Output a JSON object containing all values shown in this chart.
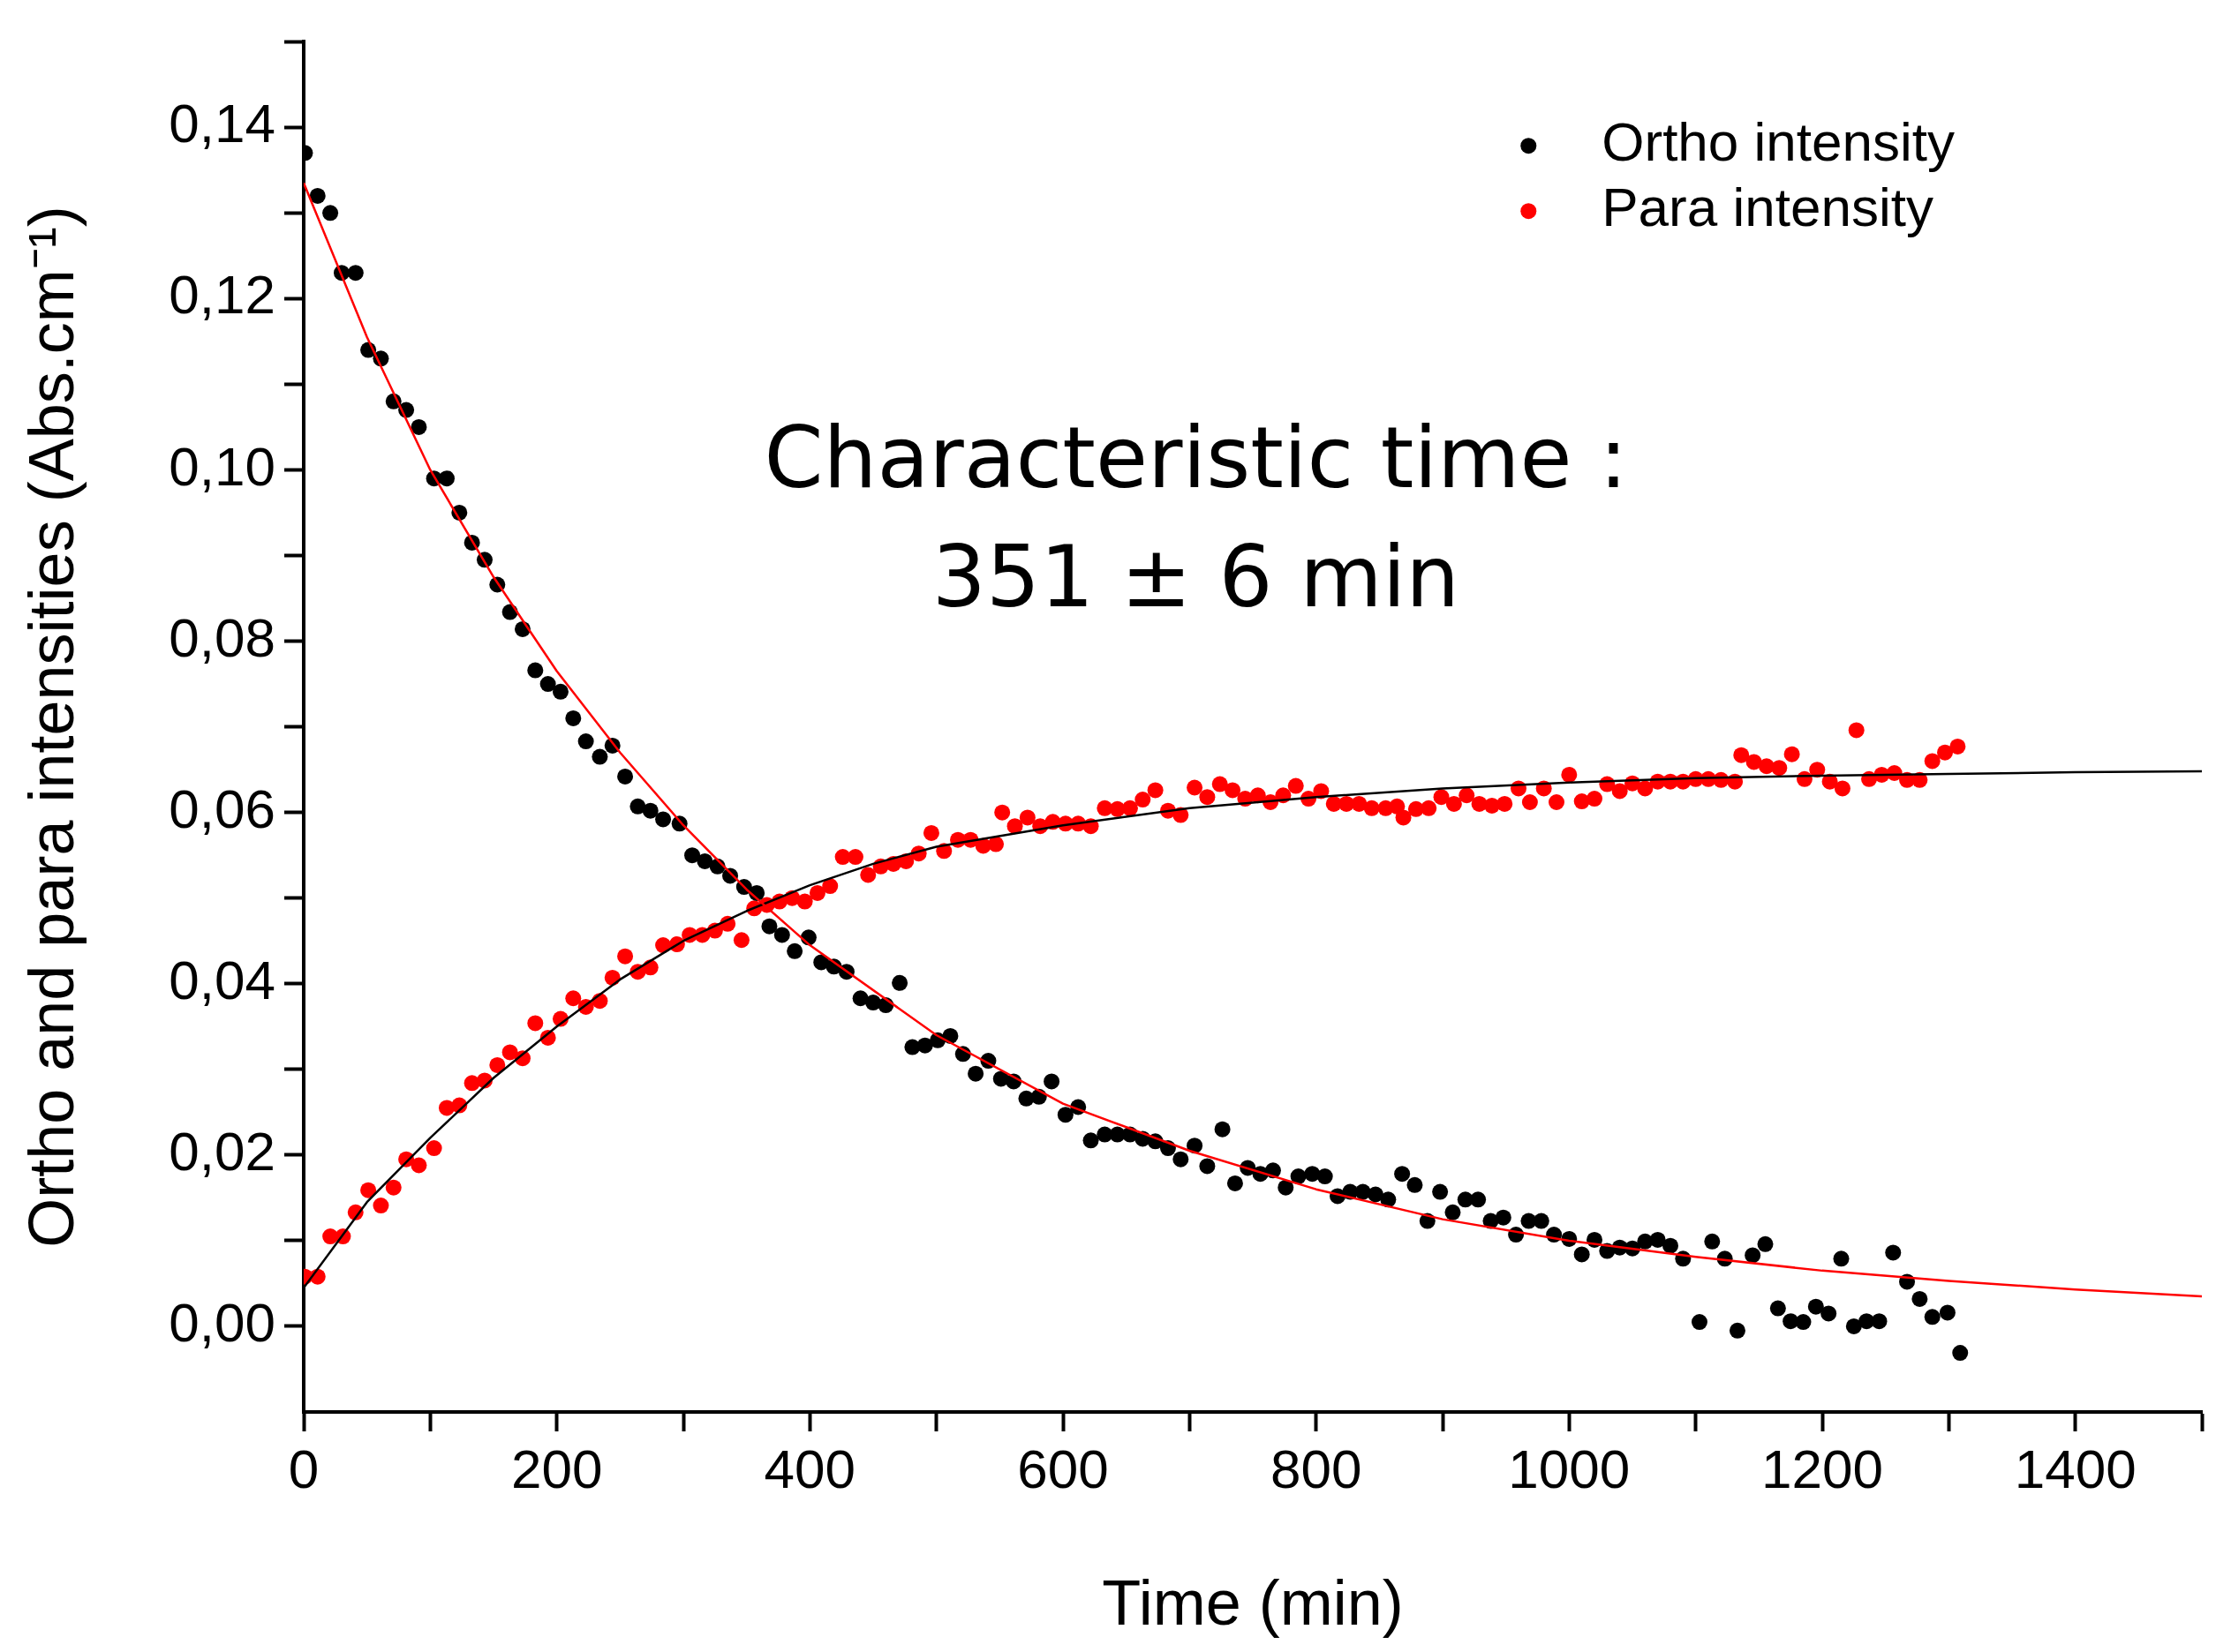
{
  "chart_data": {
    "type": "scatter",
    "xlabel": "Time (min)",
    "ylabel": "Ortho and para intensities (Abs.cm⁻¹)",
    "annotations": [
      "Characteristic time :",
      "351 ± 6 min"
    ],
    "xlim": [
      0,
      1500
    ],
    "xticks": [
      0,
      200,
      400,
      600,
      800,
      1000,
      1200,
      1400
    ],
    "ylim": [
      -0.01,
      0.15
    ],
    "yticks": [
      {
        "value": 0,
        "label": "0,00"
      },
      {
        "value": 0.02,
        "label": "0,02"
      },
      {
        "value": 0.04,
        "label": "0,04"
      },
      {
        "value": 0.06,
        "label": "0,06"
      },
      {
        "value": 0.08,
        "label": "0,08"
      },
      {
        "value": 0.1,
        "label": "0,10"
      },
      {
        "value": 0.12,
        "label": "0,12"
      },
      {
        "value": 0.14,
        "label": "0,14"
      }
    ],
    "legend": "top right",
    "marker": "circle",
    "series": [
      {
        "name": "Ortho intensity",
        "color": "#000000",
        "x": [
          1,
          11,
          21,
          30,
          41,
          51,
          61,
          71,
          81,
          91,
          103,
          113,
          123,
          133,
          143,
          153,
          163,
          173,
          183,
          193,
          203,
          213,
          223,
          234,
          244,
          254,
          264,
          274,
          284,
          297,
          307,
          317,
          327,
          337,
          348,
          358,
          368,
          378,
          388,
          399,
          409,
          419,
          429,
          440,
          450,
          460,
          471,
          481,
          491,
          501,
          511,
          521,
          531,
          541,
          551,
          561,
          571,
          581,
          591,
          602,
          612,
          622,
          633,
          643,
          653,
          663,
          673,
          683,
          693,
          704,
          714,
          726,
          736,
          746,
          756,
          766,
          776,
          786,
          797,
          807,
          817,
          827,
          837,
          847,
          857,
          868,
          878,
          888,
          898,
          908,
          918,
          928,
          938,
          948,
          958,
          968,
          978,
          988,
          1000,
          1010,
          1020,
          1030,
          1040,
          1050,
          1060,
          1070,
          1080,
          1090,
          1103,
          1113,
          1123,
          1133,
          1145,
          1155,
          1165,
          1175,
          1185,
          1195,
          1205,
          1215,
          1225,
          1235,
          1245,
          1256,
          1267,
          1277,
          1287,
          1299,
          1309
        ],
        "values": [
          0.137,
          0.132,
          0.13,
          0.123,
          0.123,
          0.114,
          0.113,
          0.108,
          0.107,
          0.105,
          0.099,
          0.099,
          0.095,
          0.0915,
          0.0895,
          0.0866,
          0.0834,
          0.0814,
          0.0766,
          0.075,
          0.0741,
          0.071,
          0.0683,
          0.0665,
          0.0678,
          0.0642,
          0.0607,
          0.0602,
          0.0592,
          0.0587,
          0.055,
          0.0543,
          0.0537,
          0.0526,
          0.0513,
          0.0506,
          0.0467,
          0.0457,
          0.0438,
          0.0454,
          0.0425,
          0.042,
          0.0414,
          0.0383,
          0.0378,
          0.0375,
          0.0401,
          0.0326,
          0.0328,
          0.0334,
          0.0339,
          0.0318,
          0.0295,
          0.031,
          0.0289,
          0.0286,
          0.0266,
          0.0268,
          0.0286,
          0.0247,
          0.0256,
          0.0217,
          0.0224,
          0.0224,
          0.0224,
          0.0219,
          0.0216,
          0.0208,
          0.0195,
          0.0211,
          0.0187,
          0.023,
          0.0167,
          0.0185,
          0.0178,
          0.0182,
          0.0162,
          0.0175,
          0.0178,
          0.0175,
          0.0152,
          0.0157,
          0.0157,
          0.0154,
          0.0148,
          0.0178,
          0.0165,
          0.0123,
          0.0157,
          0.0133,
          0.0148,
          0.0148,
          0.0123,
          0.0127,
          0.0107,
          0.0123,
          0.0123,
          0.0107,
          0.0102,
          0.0084,
          0.0101,
          0.0088,
          0.0092,
          0.0091,
          0.0099,
          0.0101,
          0.0094,
          0.0079,
          0.0005,
          0.0099,
          0.0079,
          -0.0005,
          0.0083,
          0.0096,
          0.0021,
          0.0006,
          0.0005,
          0.0023,
          0.0015,
          0.0079,
          0.0,
          0.0006,
          0.0006,
          0.0086,
          0.0052,
          0.0032,
          0.0011,
          0.0016,
          -0.0031
        ]
      },
      {
        "name": "Para intensity",
        "color": "#ff0000",
        "x": [
          1,
          11,
          21,
          31,
          41,
          51,
          61,
          71,
          81,
          91,
          103,
          113,
          123,
          133,
          143,
          153,
          163,
          173,
          183,
          193,
          203,
          213,
          223,
          234,
          244,
          254,
          264,
          274,
          284,
          295,
          305,
          315,
          325,
          335,
          346,
          356,
          366,
          376,
          386,
          396,
          406,
          416,
          426,
          436,
          446,
          456,
          466,
          476,
          486,
          496,
          506,
          517,
          527,
          537,
          547,
          552,
          562,
          572,
          582,
          592,
          602,
          612,
          622,
          633,
          643,
          653,
          663,
          673,
          683,
          693,
          704,
          714,
          724,
          734,
          744,
          754,
          764,
          774,
          784,
          794,
          804,
          814,
          824,
          834,
          844,
          855,
          864,
          869,
          879,
          889,
          899,
          909,
          919,
          929,
          939,
          949,
          960,
          969,
          980,
          990,
          1000,
          1010,
          1020,
          1030,
          1040,
          1050,
          1060,
          1070,
          1080,
          1090,
          1100,
          1110,
          1120,
          1131,
          1136,
          1146,
          1156,
          1166,
          1176,
          1186,
          1196,
          1206,
          1216,
          1227,
          1237,
          1247,
          1257,
          1267,
          1277,
          1287,
          1297,
          1307
        ],
        "values": [
          0.0058,
          0.0058,
          0.0105,
          0.0105,
          0.0133,
          0.0159,
          0.0141,
          0.0162,
          0.0195,
          0.0188,
          0.0208,
          0.0255,
          0.0258,
          0.0284,
          0.0287,
          0.0305,
          0.032,
          0.0313,
          0.0354,
          0.0337,
          0.0359,
          0.0383,
          0.0373,
          0.038,
          0.0407,
          0.0432,
          0.0414,
          0.0419,
          0.0445,
          0.0446,
          0.0457,
          0.0457,
          0.0462,
          0.047,
          0.0451,
          0.0488,
          0.0492,
          0.0496,
          0.05,
          0.0496,
          0.0506,
          0.0514,
          0.0548,
          0.0548,
          0.0527,
          0.0537,
          0.054,
          0.0543,
          0.0552,
          0.0576,
          0.0555,
          0.0568,
          0.0568,
          0.0561,
          0.0563,
          0.06,
          0.0584,
          0.0594,
          0.0584,
          0.0589,
          0.0587,
          0.0587,
          0.0584,
          0.0605,
          0.0604,
          0.0605,
          0.0615,
          0.0626,
          0.0602,
          0.0597,
          0.0629,
          0.0618,
          0.0633,
          0.0626,
          0.0616,
          0.062,
          0.0612,
          0.062,
          0.0631,
          0.0616,
          0.0625,
          0.061,
          0.061,
          0.061,
          0.0605,
          0.0605,
          0.0607,
          0.0594,
          0.0604,
          0.0605,
          0.0618,
          0.061,
          0.062,
          0.061,
          0.0608,
          0.061,
          0.0628,
          0.0612,
          0.0628,
          0.0612,
          0.0644,
          0.0613,
          0.0616,
          0.0633,
          0.0625,
          0.0634,
          0.0628,
          0.0636,
          0.0636,
          0.0636,
          0.0639,
          0.0639,
          0.0638,
          0.0636,
          0.0667,
          0.0659,
          0.0654,
          0.0652,
          0.0668,
          0.0639,
          0.065,
          0.0636,
          0.0628,
          0.0696,
          0.0639,
          0.0644,
          0.0646,
          0.0638,
          0.0638,
          0.066,
          0.067,
          0.0677
        ]
      },
      {
        "type": "line",
        "marker": "none",
        "color": "#ff0000",
        "x": [
          0,
          50,
          100,
          150,
          200,
          250,
          300,
          350,
          400,
          500,
          600,
          700,
          800,
          900,
          1000,
          1100,
          1200,
          1300,
          1400,
          1500
        ],
        "values": [
          0.1335,
          0.1155,
          0.1,
          0.0875,
          0.0765,
          0.067,
          0.0585,
          0.051,
          0.0445,
          0.034,
          0.026,
          0.0205,
          0.016,
          0.0125,
          0.01,
          0.0081,
          0.0065,
          0.0053,
          0.0043,
          0.0035
        ]
      },
      {
        "type": "line",
        "marker": "none",
        "color": "#000000",
        "x": [
          0,
          50,
          100,
          150,
          200,
          250,
          300,
          350,
          400,
          450,
          500,
          600,
          700,
          800,
          900,
          1000,
          1100,
          1200,
          1300,
          1400,
          1500
        ],
        "values": [
          0.0045,
          0.0145,
          0.022,
          0.029,
          0.035,
          0.0405,
          0.045,
          0.0485,
          0.0515,
          0.054,
          0.056,
          0.0585,
          0.0605,
          0.0618,
          0.0628,
          0.0635,
          0.064,
          0.0643,
          0.0645,
          0.0647,
          0.0648
        ]
      }
    ]
  }
}
